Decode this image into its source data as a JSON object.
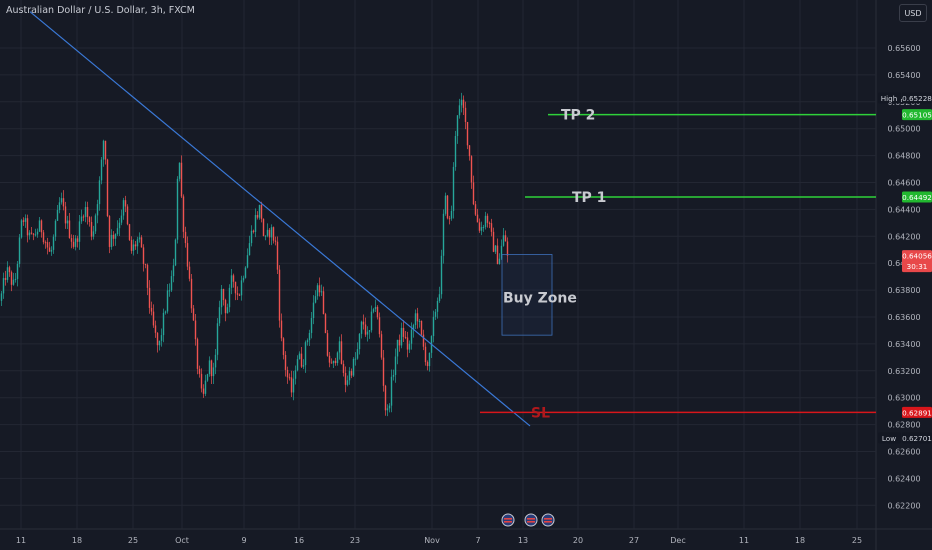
{
  "header": {
    "title": "Australian Dollar / U.S. Dollar, 3h, FXCM",
    "currency": "USD"
  },
  "colors": {
    "bg": "#161a25",
    "grid": "#232733",
    "up": "#26a69a",
    "down": "#ef5350",
    "trendline": "#3a78d6",
    "tp": "#2fd13a",
    "sl": "#d8161b",
    "text": "#b2b5be"
  },
  "chart_data": {
    "type": "candlestick",
    "symbol": "AUDUSD",
    "timeframe": "3h",
    "yaxis": {
      "ticks": [
        0.656,
        0.654,
        0.652,
        0.65,
        0.648,
        0.646,
        0.644,
        0.642,
        0.64,
        0.638,
        0.636,
        0.634,
        0.632,
        0.63,
        0.628,
        0.626,
        0.624,
        0.622
      ],
      "labels": [
        "0.65600",
        "0.65400",
        "0.65200",
        "0.65000",
        "0.64800",
        "0.64600",
        "0.64400",
        "0.64200",
        "0.64000",
        "0.63800",
        "0.63600",
        "0.63400",
        "0.63200",
        "0.63000",
        "0.62800",
        "0.62600",
        "0.62400",
        "0.62200"
      ]
    },
    "xaxis": {
      "labels": [
        "11",
        "18",
        "25",
        "Oct",
        "9",
        "16",
        "23",
        "Nov",
        "7",
        "13",
        "20",
        "27",
        "Dec",
        "11",
        "18",
        "25"
      ]
    },
    "price_labels": [
      {
        "tag": "High",
        "value": "0.65228",
        "kind": "high"
      },
      {
        "tag": "",
        "value": "0.65105",
        "kind": "tp"
      },
      {
        "tag": "",
        "value": "0.64492",
        "kind": "tp"
      },
      {
        "tag": "",
        "value": "0.64056",
        "sub": "30:31",
        "kind": "last"
      },
      {
        "tag": "",
        "value": "0.62891",
        "kind": "sl"
      },
      {
        "tag": "Low",
        "value": "0.62701",
        "kind": "low"
      }
    ],
    "annotations": {
      "tp2": {
        "label": "TP 2",
        "price": 0.65105
      },
      "tp1": {
        "label": "TP 1",
        "price": 0.64492
      },
      "sl": {
        "label": "SL",
        "price": 0.62891
      },
      "buy_zone": {
        "label": "Buy Zone",
        "top": 0.64065,
        "bottom": 0.63465
      },
      "trendline": {
        "from": {
          "x_label": "11",
          "price": 0.6587
        },
        "to": {
          "x_label": "13",
          "price": 0.6279
        }
      }
    },
    "path_anchors": [
      [
        0,
        0.6372
      ],
      [
        6,
        0.6395
      ],
      [
        14,
        0.6382
      ],
      [
        22,
        0.6435
      ],
      [
        30,
        0.6417
      ],
      [
        40,
        0.6428
      ],
      [
        50,
        0.6405
      ],
      [
        60,
        0.6448
      ],
      [
        66,
        0.643
      ],
      [
        74,
        0.6412
      ],
      [
        84,
        0.6443
      ],
      [
        92,
        0.642
      ],
      [
        100,
        0.6465
      ],
      [
        104,
        0.65
      ],
      [
        108,
        0.6415
      ],
      [
        116,
        0.6425
      ],
      [
        124,
        0.6446
      ],
      [
        130,
        0.6408
      ],
      [
        138,
        0.6418
      ],
      [
        146,
        0.639
      ],
      [
        150,
        0.6362
      ],
      [
        158,
        0.6335
      ],
      [
        166,
        0.6372
      ],
      [
        174,
        0.6398
      ],
      [
        178,
        0.6488
      ],
      [
        182,
        0.6435
      ],
      [
        188,
        0.6395
      ],
      [
        196,
        0.633
      ],
      [
        202,
        0.6296
      ],
      [
        208,
        0.6325
      ],
      [
        214,
        0.6318
      ],
      [
        220,
        0.6382
      ],
      [
        226,
        0.6364
      ],
      [
        232,
        0.639
      ],
      [
        238,
        0.6375
      ],
      [
        246,
        0.6405
      ],
      [
        254,
        0.6432
      ],
      [
        260,
        0.6442
      ],
      [
        264,
        0.6414
      ],
      [
        270,
        0.6426
      ],
      [
        276,
        0.6412
      ],
      [
        280,
        0.6346
      ],
      [
        286,
        0.6318
      ],
      [
        292,
        0.6302
      ],
      [
        296,
        0.6332
      ],
      [
        302,
        0.6326
      ],
      [
        310,
        0.6355
      ],
      [
        316,
        0.6382
      ],
      [
        320,
        0.6384
      ],
      [
        326,
        0.6335
      ],
      [
        332,
        0.632
      ],
      [
        338,
        0.6342
      ],
      [
        344,
        0.631
      ],
      [
        350,
        0.632
      ],
      [
        356,
        0.633
      ],
      [
        362,
        0.6358
      ],
      [
        368,
        0.6342
      ],
      [
        374,
        0.6375
      ],
      [
        380,
        0.634
      ],
      [
        386,
        0.6283
      ],
      [
        390,
        0.6305
      ],
      [
        396,
        0.6336
      ],
      [
        402,
        0.635
      ],
      [
        408,
        0.6335
      ],
      [
        416,
        0.6365
      ],
      [
        422,
        0.634
      ],
      [
        428,
        0.6322
      ],
      [
        434,
        0.6362
      ],
      [
        440,
        0.6385
      ],
      [
        444,
        0.645
      ],
      [
        450,
        0.6426
      ],
      [
        456,
        0.6512
      ],
      [
        462,
        0.6518
      ],
      [
        468,
        0.6488
      ],
      [
        474,
        0.6438
      ],
      [
        480,
        0.6425
      ],
      [
        486,
        0.6436
      ],
      [
        492,
        0.6415
      ],
      [
        498,
        0.6402
      ],
      [
        504,
        0.6422
      ],
      [
        507,
        0.64056
      ]
    ]
  }
}
